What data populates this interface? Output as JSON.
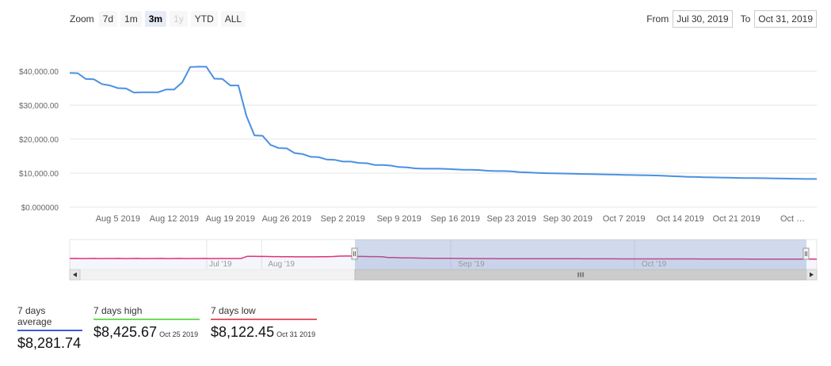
{
  "zoom": {
    "label": "Zoom",
    "buttons": [
      {
        "label": "7d",
        "state": "normal"
      },
      {
        "label": "1m",
        "state": "normal"
      },
      {
        "label": "3m",
        "state": "active"
      },
      {
        "label": "1y",
        "state": "disabled"
      },
      {
        "label": "YTD",
        "state": "normal"
      },
      {
        "label": "ALL",
        "state": "normal"
      }
    ]
  },
  "range": {
    "from_label": "From",
    "from_value": "Jul 30, 2019",
    "to_label": "To",
    "to_value": "Oct 31, 2019"
  },
  "chart_data": {
    "type": "line",
    "title": "",
    "xlabel": "",
    "ylabel": "",
    "ylim": [
      0,
      40000
    ],
    "y_ticks": [
      {
        "value": 0,
        "label": "$0.000000"
      },
      {
        "value": 10000,
        "label": "$10,000.00"
      },
      {
        "value": 20000,
        "label": "$20,000.00"
      },
      {
        "value": 30000,
        "label": "$30,000.00"
      },
      {
        "value": 40000,
        "label": "$40,000.00"
      }
    ],
    "x_ticks": [
      {
        "day": 6,
        "label": "Aug 5 2019"
      },
      {
        "day": 13,
        "label": "Aug 12 2019"
      },
      {
        "day": 20,
        "label": "Aug 19 2019"
      },
      {
        "day": 27,
        "label": "Aug 26 2019"
      },
      {
        "day": 34,
        "label": "Sep 2 2019"
      },
      {
        "day": 41,
        "label": "Sep 9 2019"
      },
      {
        "day": 48,
        "label": "Sep 16 2019"
      },
      {
        "day": 55,
        "label": "Sep 23 2019"
      },
      {
        "day": 62,
        "label": "Sep 30 2019"
      },
      {
        "day": 69,
        "label": "Oct 7 2019"
      },
      {
        "day": 76,
        "label": "Oct 14 2019"
      },
      {
        "day": 83,
        "label": "Oct 21 2019"
      },
      {
        "day": 90,
        "label": "Oct …"
      }
    ],
    "x_range_days": [
      0,
      93
    ],
    "series": [
      {
        "name": "7 days average",
        "color": "#4a90e2",
        "points": [
          [
            0,
            39500
          ],
          [
            1,
            39400
          ],
          [
            2,
            37700
          ],
          [
            3,
            37600
          ],
          [
            4,
            36200
          ],
          [
            5,
            35800
          ],
          [
            6,
            35000
          ],
          [
            7,
            34900
          ],
          [
            8,
            33700
          ],
          [
            9,
            33800
          ],
          [
            10,
            33800
          ],
          [
            11,
            33800
          ],
          [
            12,
            34600
          ],
          [
            13,
            34600
          ],
          [
            14,
            36700
          ],
          [
            15,
            41200
          ],
          [
            16,
            41300
          ],
          [
            17,
            41300
          ],
          [
            18,
            37800
          ],
          [
            19,
            37700
          ],
          [
            20,
            35800
          ],
          [
            21,
            35800
          ],
          [
            22,
            26800
          ],
          [
            23,
            21100
          ],
          [
            24,
            21000
          ],
          [
            25,
            18300
          ],
          [
            26,
            17400
          ],
          [
            27,
            17300
          ],
          [
            28,
            15900
          ],
          [
            29,
            15600
          ],
          [
            30,
            14800
          ],
          [
            31,
            14700
          ],
          [
            32,
            14000
          ],
          [
            33,
            13900
          ],
          [
            34,
            13400
          ],
          [
            35,
            13400
          ],
          [
            36,
            13000
          ],
          [
            37,
            12900
          ],
          [
            38,
            12400
          ],
          [
            39,
            12400
          ],
          [
            40,
            12200
          ],
          [
            41,
            11800
          ],
          [
            42,
            11700
          ],
          [
            43,
            11400
          ],
          [
            44,
            11300
          ],
          [
            45,
            11300
          ],
          [
            46,
            11300
          ],
          [
            47,
            11200
          ],
          [
            48,
            11100
          ],
          [
            49,
            11000
          ],
          [
            50,
            11000
          ],
          [
            51,
            10900
          ],
          [
            52,
            10700
          ],
          [
            53,
            10600
          ],
          [
            54,
            10600
          ],
          [
            55,
            10500
          ],
          [
            56,
            10300
          ],
          [
            57,
            10200
          ],
          [
            58,
            10100
          ],
          [
            59,
            10000
          ],
          [
            60,
            9950
          ],
          [
            61,
            9900
          ],
          [
            62,
            9850
          ],
          [
            63,
            9800
          ],
          [
            64,
            9750
          ],
          [
            65,
            9700
          ],
          [
            66,
            9650
          ],
          [
            67,
            9600
          ],
          [
            68,
            9550
          ],
          [
            69,
            9500
          ],
          [
            70,
            9450
          ],
          [
            71,
            9400
          ],
          [
            72,
            9350
          ],
          [
            73,
            9300
          ],
          [
            74,
            9200
          ],
          [
            75,
            9100
          ],
          [
            76,
            9000
          ],
          [
            77,
            8900
          ],
          [
            78,
            8850
          ],
          [
            79,
            8800
          ],
          [
            80,
            8750
          ],
          [
            81,
            8700
          ],
          [
            82,
            8650
          ],
          [
            83,
            8600
          ],
          [
            84,
            8550
          ],
          [
            85,
            8550
          ],
          [
            86,
            8500
          ],
          [
            87,
            8480
          ],
          [
            88,
            8450
          ],
          [
            89,
            8400
          ],
          [
            90,
            8350
          ],
          [
            91,
            8300
          ],
          [
            92,
            8281
          ],
          [
            93,
            8281
          ]
        ]
      }
    ],
    "navigator": {
      "labels": [
        "Jul '19",
        "Aug '19",
        "Sep '19",
        "Oct '19"
      ],
      "selection": "Jul 30, 2019 – Oct 31, 2019"
    }
  },
  "stats": [
    {
      "label": "7 days average",
      "value": "$8,281.74",
      "date": "",
      "color": "#3b5bdb"
    },
    {
      "label": "7 days high",
      "value": "$8,425.67",
      "date": "Oct 25 2019",
      "color": "#6cdc5a"
    },
    {
      "label": "7 days low",
      "value": "$8,122.45",
      "date": "Oct 31 2019",
      "color": "#e05a6a"
    }
  ],
  "colors": {
    "line": "#4a90e2",
    "navigator_line": "#e0307a",
    "navigator_mask": "rgba(102,133,194,0.3)",
    "grid": "#e6e6e6"
  }
}
